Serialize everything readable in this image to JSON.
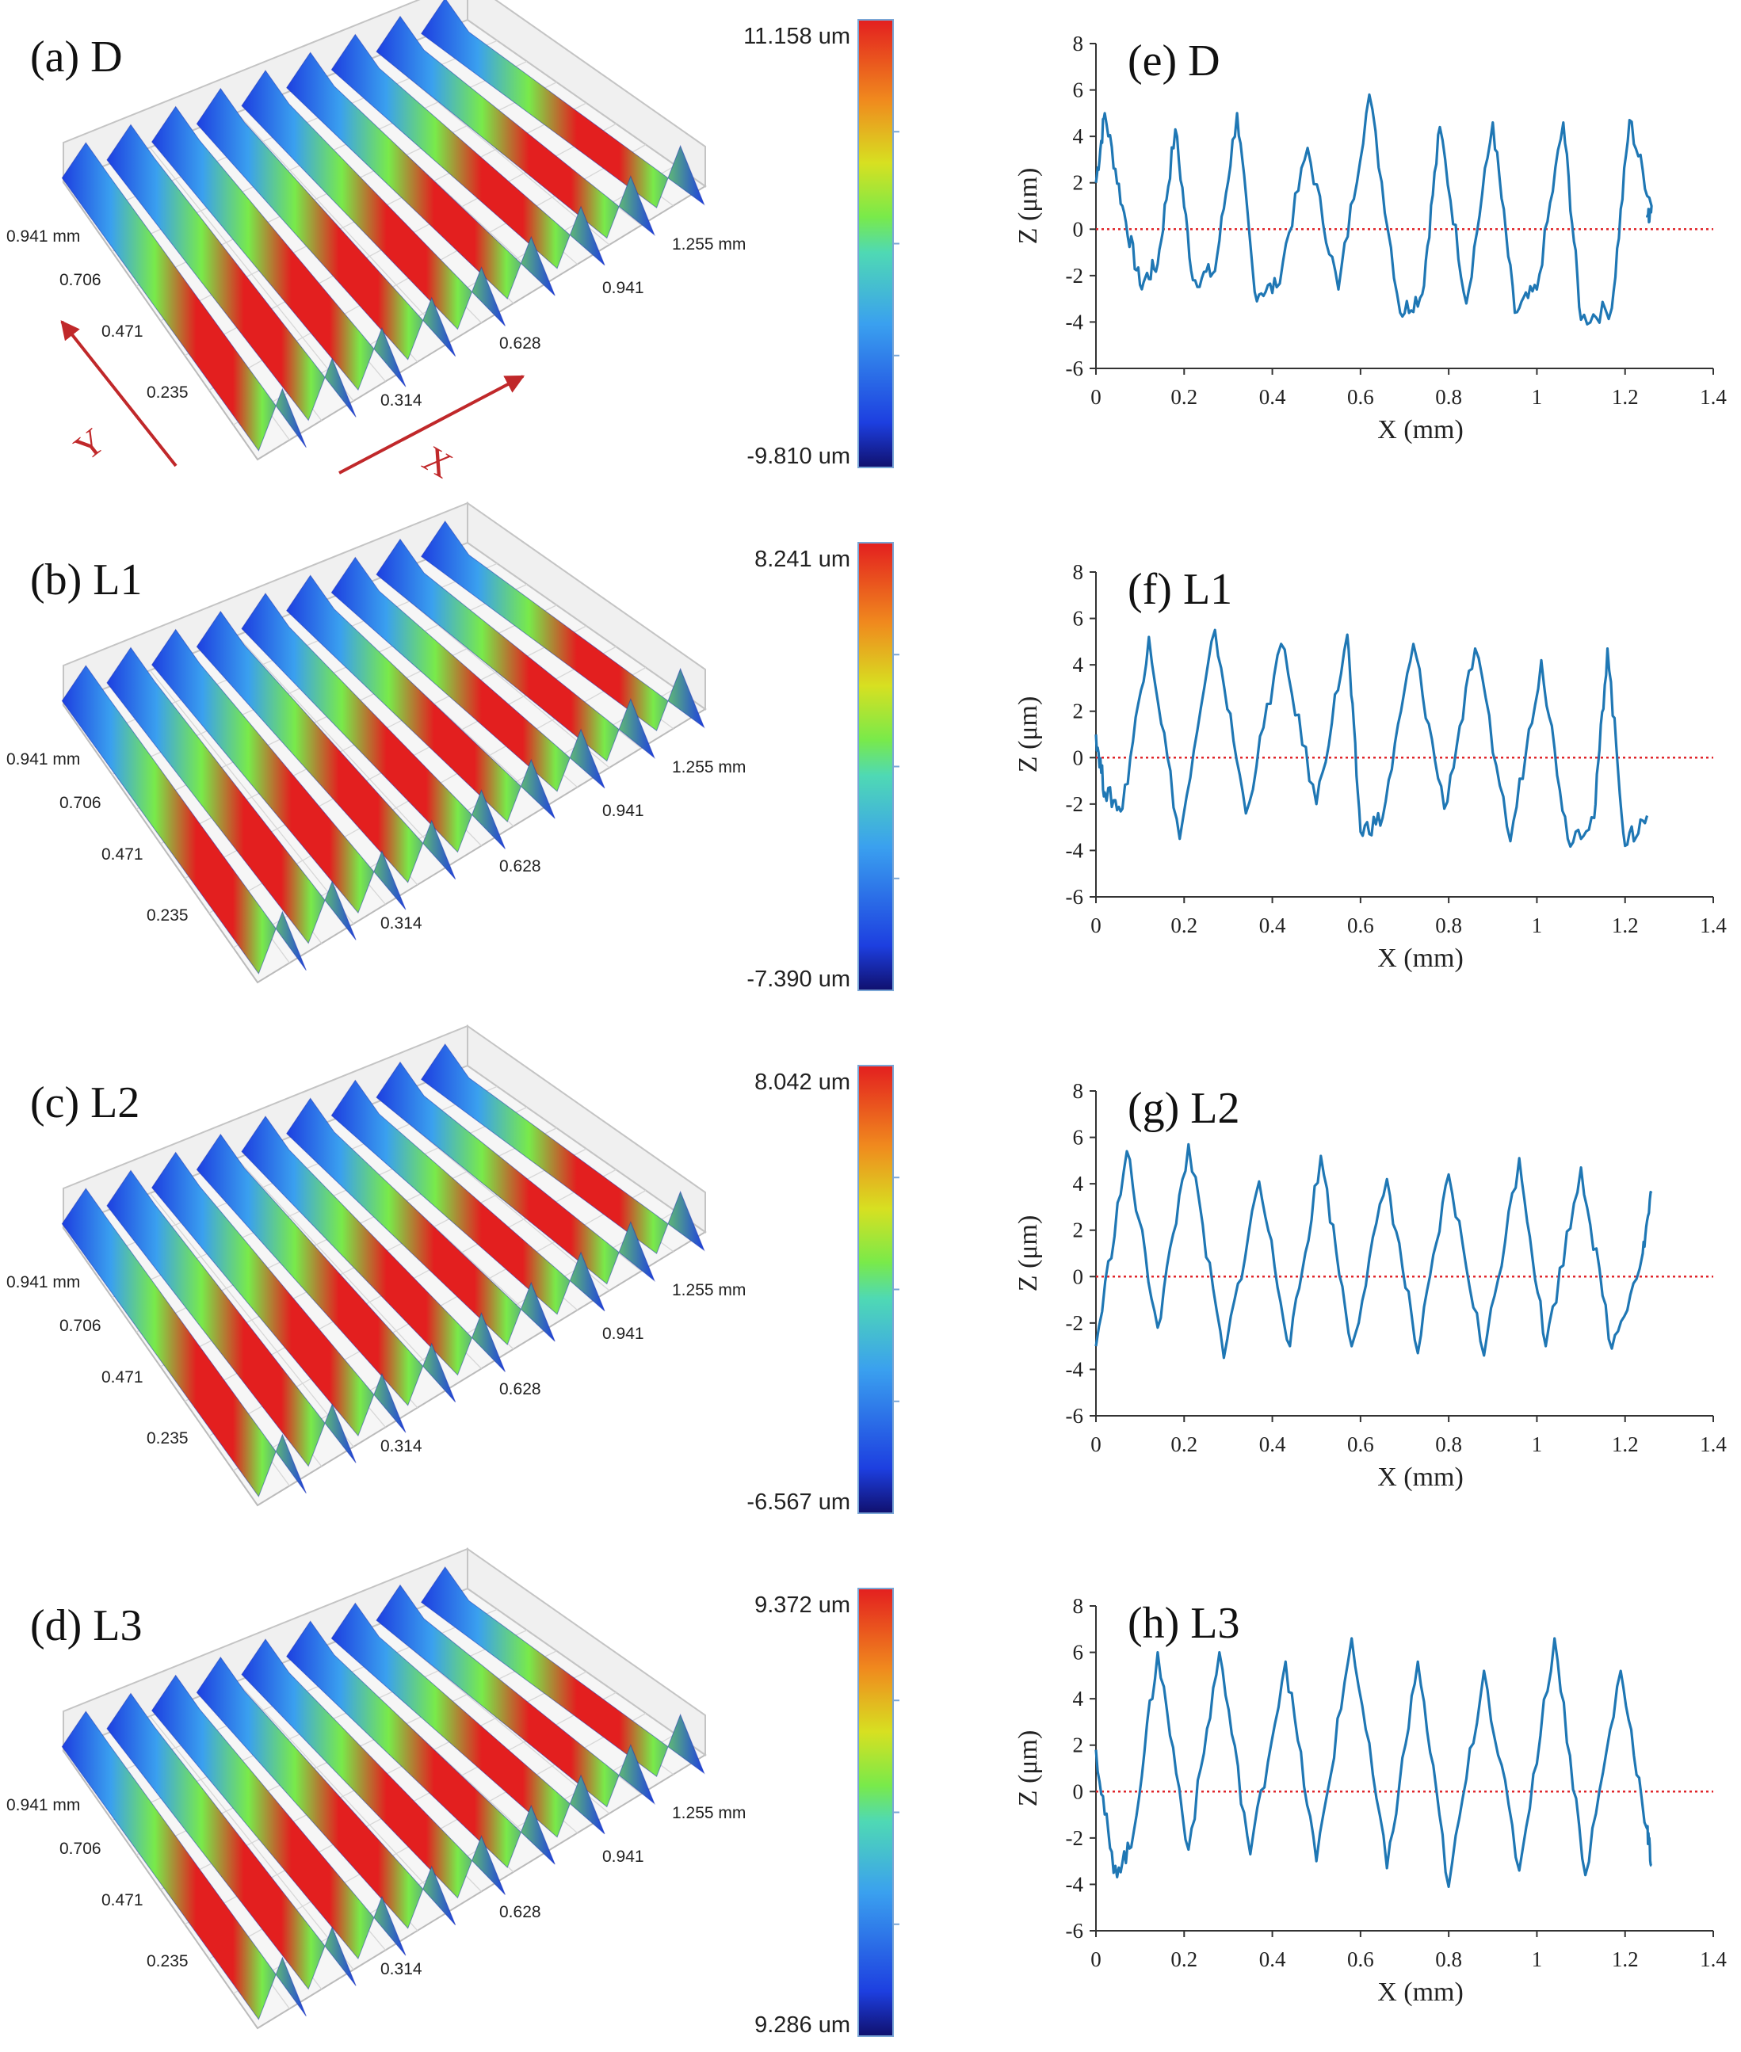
{
  "colors": {
    "line": "#1f77b4",
    "zero_line": "#e0262b",
    "colormap": [
      "#10106e",
      "#1d3fe0",
      "#3aa0ef",
      "#4fd9b4",
      "#79ea4a",
      "#d7e021",
      "#f08a1e",
      "#e31f1f"
    ],
    "arrow": "#c0282a"
  },
  "direction_labels": {
    "x": "X",
    "y": "Y"
  },
  "surfaces": [
    {
      "label": "(a) D",
      "cb_max": "11.158 um",
      "cb_min": "-9.810 um",
      "y_ticks": [
        "0.941 mm",
        "0.706",
        "0.471",
        "0.235"
      ],
      "x_ticks": [
        "0.314",
        "0.628",
        "0.941",
        "1.255 mm"
      ]
    },
    {
      "label": "(b) L1",
      "cb_max": "8.241 um",
      "cb_min": "-7.390 um",
      "y_ticks": [
        "0.941 mm",
        "0.706",
        "0.471",
        "0.235"
      ],
      "x_ticks": [
        "0.314",
        "0.628",
        "0.941",
        "1.255 mm"
      ]
    },
    {
      "label": "(c) L2",
      "cb_max": "8.042 um",
      "cb_min": "-6.567 um",
      "y_ticks": [
        "0.941 mm",
        "0.706",
        "0.471",
        "0.235"
      ],
      "x_ticks": [
        "0.314",
        "0.628",
        "0.941",
        "1.255 mm"
      ]
    },
    {
      "label": "(d) L3",
      "cb_max": "9.372 um",
      "cb_min": "9.286 um",
      "y_ticks": [
        "0.941 mm",
        "0.706",
        "0.471",
        "0.235"
      ],
      "x_ticks": [
        "0.314",
        "0.628",
        "0.941",
        "1.255 mm"
      ]
    }
  ],
  "chart_data": [
    {
      "type": "line",
      "title": "(e) D",
      "xlabel": "X (mm)",
      "ylabel": "Z (μm)",
      "xlim": [
        0,
        1.4
      ],
      "ylim": [
        -6,
        8
      ],
      "x_ticks": [
        "0",
        "0.2",
        "0.4",
        "0.6",
        "0.8",
        "1",
        "1.2",
        "1.4"
      ],
      "y_ticks": [
        "8",
        "6",
        "4",
        "2",
        "0",
        "-2",
        "-4",
        "-6"
      ],
      "reference_line_y": 0,
      "series": [
        {
          "name": "D",
          "x": [
            0,
            0.02,
            0.06,
            0.1,
            0.14,
            0.18,
            0.22,
            0.27,
            0.32,
            0.36,
            0.41,
            0.48,
            0.55,
            0.62,
            0.69,
            0.74,
            0.78,
            0.84,
            0.9,
            0.95,
            1.0,
            1.06,
            1.1,
            1.17,
            1.21,
            1.26,
            1.25
          ],
          "y": [
            2.0,
            5.0,
            1.0,
            -2.4,
            -1.5,
            4.3,
            -2.2,
            -1.8,
            5.0,
            -2.7,
            -2.5,
            3.5,
            -2.6,
            5.8,
            -3.6,
            -2.8,
            4.4,
            -3.2,
            4.6,
            -3.6,
            -2.6,
            4.6,
            -3.9,
            -3.4,
            4.7,
            1.0,
            0.5
          ]
        }
      ]
    },
    {
      "type": "line",
      "title": "(f) L1",
      "xlabel": "X (mm)",
      "ylabel": "Z (μm)",
      "xlim": [
        0,
        1.4
      ],
      "ylim": [
        -6,
        8
      ],
      "x_ticks": [
        "0",
        "0.2",
        "0.4",
        "0.6",
        "0.8",
        "1",
        "1.2",
        "1.4"
      ],
      "y_ticks": [
        "8",
        "6",
        "4",
        "2",
        "0",
        "-2",
        "-4",
        "-6"
      ],
      "reference_line_y": 0,
      "series": [
        {
          "name": "L1",
          "x": [
            0,
            0.02,
            0.06,
            0.12,
            0.19,
            0.27,
            0.34,
            0.42,
            0.5,
            0.57,
            0.6,
            0.65,
            0.72,
            0.79,
            0.86,
            0.94,
            1.01,
            1.07,
            1.13,
            1.16,
            1.2,
            1.25
          ],
          "y": [
            1.0,
            -1.5,
            -2.2,
            5.2,
            -3.5,
            5.5,
            -2.4,
            4.9,
            -2.0,
            5.3,
            -3.2,
            -2.6,
            4.9,
            -2.2,
            4.7,
            -3.6,
            4.2,
            -3.5,
            -2.6,
            4.7,
            -3.8,
            -2.5
          ]
        }
      ]
    },
    {
      "type": "line",
      "title": "(g) L2",
      "xlabel": "X (mm)",
      "ylabel": "Z (μm)",
      "xlim": [
        0,
        1.4
      ],
      "ylim": [
        -6,
        8
      ],
      "x_ticks": [
        "0",
        "0.2",
        "0.4",
        "0.6",
        "0.8",
        "1",
        "1.2",
        "1.4"
      ],
      "y_ticks": [
        "8",
        "6",
        "4",
        "2",
        "0",
        "-2",
        "-4",
        "-6"
      ],
      "reference_line_y": 0,
      "series": [
        {
          "name": "L2",
          "x": [
            0,
            0.07,
            0.14,
            0.21,
            0.29,
            0.37,
            0.44,
            0.51,
            0.58,
            0.66,
            0.73,
            0.8,
            0.88,
            0.96,
            1.02,
            1.1,
            1.17,
            1.24,
            1.26
          ],
          "y": [
            -3.0,
            5.4,
            -2.2,
            5.7,
            -3.5,
            4.1,
            -3.0,
            5.2,
            -3.0,
            4.2,
            -3.3,
            4.4,
            -3.4,
            5.1,
            -3.0,
            4.7,
            -3.1,
            1.0,
            3.6
          ]
        }
      ]
    },
    {
      "type": "line",
      "title": "(h) L3",
      "xlabel": "X (mm)",
      "ylabel": "Z (μm)",
      "xlim": [
        0,
        1.4
      ],
      "ylim": [
        -6,
        8
      ],
      "x_ticks": [
        "0",
        "0.2",
        "0.4",
        "0.6",
        "0.8",
        "1",
        "1.2",
        "1.4"
      ],
      "y_ticks": [
        "8",
        "6",
        "4",
        "2",
        "0",
        "-2",
        "-4",
        "-6"
      ],
      "reference_line_y": 0,
      "series": [
        {
          "name": "L3",
          "x": [
            0,
            0.04,
            0.08,
            0.14,
            0.21,
            0.28,
            0.35,
            0.43,
            0.5,
            0.58,
            0.66,
            0.73,
            0.8,
            0.88,
            0.96,
            1.04,
            1.11,
            1.19,
            1.25,
            1.26
          ],
          "y": [
            1.8,
            -3.5,
            -2.4,
            6.0,
            -2.5,
            6.0,
            -2.7,
            5.6,
            -3.0,
            6.6,
            -3.3,
            5.6,
            -4.1,
            5.2,
            -3.4,
            6.6,
            -3.6,
            5.2,
            -1.6,
            -3.2
          ]
        }
      ]
    }
  ]
}
